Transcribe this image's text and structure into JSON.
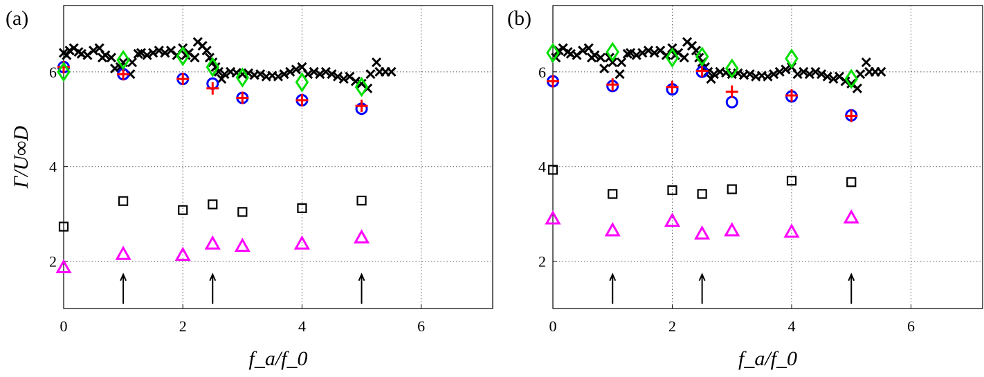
{
  "chart_data": [
    {
      "panel_label": "(a)",
      "type": "scatter",
      "xlabel": "f_a/f_0",
      "ylabel": "Γ/U∞D",
      "xlim": [
        0,
        7.2
      ],
      "ylim": [
        1,
        7.4
      ],
      "xticks": [
        "0",
        "2",
        "4",
        "6"
      ],
      "yticks": [
        "2",
        "4",
        "6"
      ],
      "grid": true,
      "arrows_at_x": [
        1,
        2.5,
        5
      ],
      "series": [
        {
          "marker": "x",
          "color": "#000000",
          "x": [
            0,
            0.05,
            0.1,
            0.17,
            0.25,
            0.3,
            0.4,
            0.5,
            0.6,
            0.65,
            0.7,
            0.8,
            0.86,
            0.95,
            1.0,
            1.12,
            1.15,
            1.25,
            1.3,
            1.4,
            1.5,
            1.6,
            1.7,
            1.8,
            1.9,
            2.0,
            2.05,
            2.1,
            2.2,
            2.25,
            2.33,
            2.4,
            2.45,
            2.5,
            2.55,
            2.6,
            2.65,
            2.7,
            2.8,
            2.9,
            3.0,
            3.1,
            3.2,
            3.3,
            3.4,
            3.5,
            3.6,
            3.7,
            3.8,
            3.9,
            4.0,
            4.1,
            4.2,
            4.3,
            4.4,
            4.5,
            4.6,
            4.7,
            4.8,
            4.9,
            5.0,
            5.1,
            5.15,
            5.25,
            5.3,
            5.4,
            5.5
          ],
          "y": [
            6.4,
            6.35,
            6.45,
            6.5,
            6.42,
            6.38,
            6.35,
            6.45,
            6.5,
            6.3,
            6.35,
            6.3,
            6.07,
            6.1,
            6.2,
            5.95,
            6.2,
            6.38,
            6.4,
            6.35,
            6.4,
            6.45,
            6.4,
            6.45,
            6.35,
            6.5,
            6.35,
            6.4,
            6.3,
            6.63,
            6.55,
            6.45,
            6.3,
            6.2,
            6.1,
            6.0,
            5.85,
            5.95,
            6.0,
            5.98,
            5.95,
            5.97,
            5.93,
            5.95,
            5.9,
            5.92,
            5.9,
            5.95,
            6.0,
            6.05,
            6.1,
            5.95,
            6.0,
            5.95,
            6.0,
            5.95,
            5.9,
            5.85,
            5.9,
            5.8,
            5.75,
            5.65,
            5.95,
            6.2,
            6.0,
            6.0,
            6.0
          ]
        },
        {
          "marker": "circle",
          "color": "#0000ff",
          "x": [
            0,
            1,
            2,
            2.5,
            3,
            4,
            5
          ],
          "y": [
            6.1,
            5.95,
            5.85,
            5.75,
            5.45,
            5.4,
            5.22
          ]
        },
        {
          "marker": "plus",
          "color": "#ff0000",
          "x": [
            0,
            1,
            2,
            2.5,
            3,
            4,
            5
          ],
          "y": [
            6.1,
            5.95,
            5.85,
            5.65,
            5.45,
            5.4,
            5.28
          ]
        },
        {
          "marker": "diamond",
          "color": "#00e000",
          "x": [
            0,
            1,
            2,
            2.5,
            3,
            4,
            5
          ],
          "y": [
            6.0,
            6.25,
            6.33,
            6.1,
            5.88,
            5.78,
            5.68
          ]
        },
        {
          "marker": "square",
          "color": "#000000",
          "x": [
            0,
            1,
            2,
            2.5,
            3,
            4,
            5
          ],
          "y": [
            2.73,
            3.27,
            3.08,
            3.2,
            3.04,
            3.12,
            3.28
          ]
        },
        {
          "marker": "triangle",
          "color": "#ff00ff",
          "x": [
            0,
            1,
            2,
            2.5,
            3,
            4,
            5
          ],
          "y": [
            1.87,
            2.15,
            2.13,
            2.37,
            2.32,
            2.37,
            2.5
          ]
        }
      ]
    },
    {
      "panel_label": "(b)",
      "type": "scatter",
      "xlabel": "f_a/f_0",
      "xlim": [
        0,
        7.2
      ],
      "ylim": [
        1,
        7.4
      ],
      "xticks": [
        "0",
        "2",
        "4",
        "6"
      ],
      "yticks": [
        "2",
        "4",
        "6"
      ],
      "grid": true,
      "arrows_at_x": [
        1,
        2.5,
        5
      ],
      "series": [
        {
          "marker": "x",
          "color": "#000000",
          "x": [
            0.05,
            0.1,
            0.17,
            0.25,
            0.3,
            0.4,
            0.5,
            0.6,
            0.65,
            0.7,
            0.8,
            0.86,
            0.95,
            1.0,
            1.12,
            1.15,
            1.25,
            1.3,
            1.4,
            1.5,
            1.6,
            1.7,
            1.8,
            1.9,
            2.0,
            2.05,
            2.1,
            2.2,
            2.25,
            2.33,
            2.4,
            2.45,
            2.5,
            2.55,
            2.6,
            2.65,
            2.7,
            2.8,
            2.9,
            3.0,
            3.1,
            3.2,
            3.3,
            3.4,
            3.5,
            3.6,
            3.7,
            3.8,
            3.9,
            4.0,
            4.1,
            4.2,
            4.3,
            4.4,
            4.5,
            4.6,
            4.7,
            4.8,
            4.9,
            5.0,
            5.1,
            5.15,
            5.25,
            5.3,
            5.4,
            5.5
          ],
          "y": [
            6.3,
            6.45,
            6.5,
            6.42,
            6.38,
            6.35,
            6.45,
            6.5,
            6.3,
            6.35,
            6.3,
            6.07,
            6.3,
            6.2,
            5.95,
            6.2,
            6.38,
            6.4,
            6.35,
            6.4,
            6.45,
            6.4,
            6.45,
            6.35,
            6.5,
            6.35,
            6.4,
            6.3,
            6.63,
            6.55,
            6.45,
            6.3,
            6.2,
            6.1,
            6.0,
            5.85,
            5.95,
            6.0,
            5.98,
            5.95,
            5.97,
            5.93,
            5.95,
            5.9,
            5.92,
            5.9,
            5.95,
            6.0,
            6.05,
            6.1,
            5.95,
            6.0,
            5.95,
            6.0,
            5.95,
            5.9,
            5.85,
            5.9,
            5.8,
            5.75,
            5.65,
            5.95,
            6.2,
            6.0,
            6.0,
            6.0
          ]
        },
        {
          "marker": "circle",
          "color": "#0000ff",
          "x": [
            0,
            1,
            2,
            2.5,
            3,
            4,
            5
          ],
          "y": [
            5.8,
            5.7,
            5.63,
            6.0,
            5.36,
            5.48,
            5.08
          ]
        },
        {
          "marker": "plus",
          "color": "#ff0000",
          "x": [
            0,
            1,
            2,
            2.5,
            3,
            4,
            5
          ],
          "y": [
            5.8,
            5.73,
            5.68,
            6.02,
            5.58,
            5.5,
            5.07
          ]
        },
        {
          "marker": "diamond",
          "color": "#00e000",
          "x": [
            0,
            1,
            2,
            2.5,
            3,
            4,
            5
          ],
          "y": [
            6.4,
            6.42,
            6.3,
            6.32,
            6.07,
            6.28,
            5.85
          ]
        },
        {
          "marker": "square",
          "color": "#000000",
          "x": [
            0,
            1,
            2,
            2.5,
            3,
            4,
            5
          ],
          "y": [
            3.93,
            3.42,
            3.5,
            3.42,
            3.52,
            3.7,
            3.67
          ]
        },
        {
          "marker": "triangle",
          "color": "#ff00ff",
          "x": [
            0,
            1,
            2,
            2.5,
            3,
            4,
            5
          ],
          "y": [
            2.9,
            2.65,
            2.85,
            2.58,
            2.65,
            2.62,
            2.92
          ]
        }
      ]
    }
  ]
}
